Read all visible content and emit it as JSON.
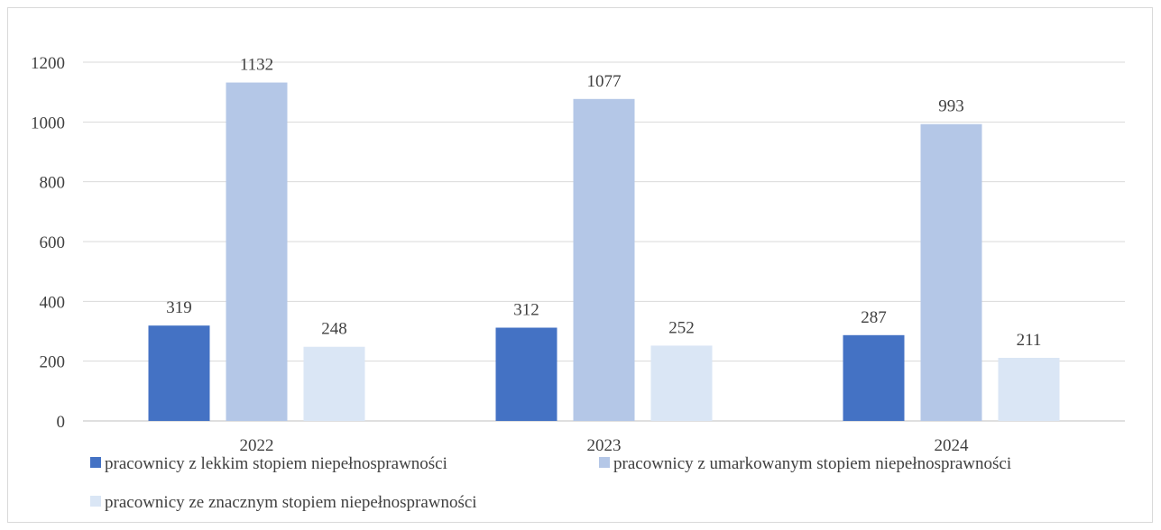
{
  "chart_data": {
    "type": "bar",
    "categories": [
      "2022",
      "2023",
      "2024"
    ],
    "series": [
      {
        "name": "pracownicy z lekkim stopiem niepełnosprawności",
        "values": [
          319,
          312,
          287
        ],
        "color": "#4472c4"
      },
      {
        "name": "pracownicy z umarkowanym stopiem niepełnosprawności",
        "values": [
          1132,
          1077,
          993
        ],
        "color": "#b4c7e7"
      },
      {
        "name": "pracownicy ze znacznym stopiem niepełnosprawności",
        "values": [
          248,
          252,
          211
        ],
        "color": "#dae6f5"
      }
    ],
    "ylim": [
      0,
      1200
    ],
    "yticks": [
      0,
      200,
      400,
      600,
      800,
      1000,
      1200
    ],
    "grid": true,
    "data_labels": true,
    "legend_position": "bottom",
    "gridline_color": "#d9d9d9",
    "axis_color": "#bfbfbf"
  }
}
